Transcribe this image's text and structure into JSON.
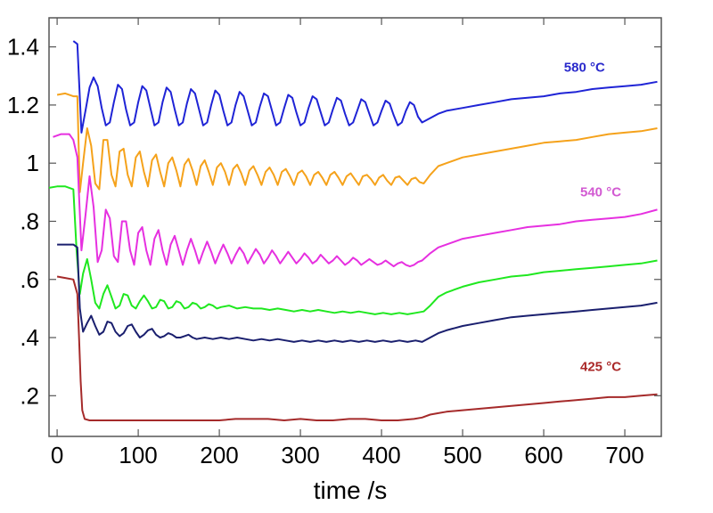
{
  "chart_data": {
    "type": "line",
    "title": "",
    "xlabel": "time /s",
    "ylabel": "",
    "xlim": [
      -10,
      745
    ],
    "ylim": [
      0.06,
      1.5
    ],
    "xticks": [
      0,
      100,
      200,
      300,
      400,
      500,
      600,
      700
    ],
    "xtick_labels": [
      "0",
      "100",
      "200",
      "300",
      "400",
      "500",
      "600",
      "700"
    ],
    "yticks": [
      0.2,
      0.4,
      0.6,
      0.8,
      1.0,
      1.2,
      1.4
    ],
    "ytick_labels": [
      ".2",
      ".4",
      ".6",
      ".8",
      "1",
      "1.2",
      "1.4"
    ],
    "grid": false,
    "annotations": [
      {
        "text": "580 °C",
        "x": 625,
        "y": 1.315,
        "color": "#2a2acc"
      },
      {
        "text": "540 °C",
        "x": 645,
        "y": 0.885,
        "color": "#d25ad2"
      },
      {
        "text": "425 °C",
        "x": 645,
        "y": 0.285,
        "color": "#aa2828"
      }
    ],
    "series": [
      {
        "color": "#1f24d6",
        "x": [
          20,
          25,
          30,
          35,
          40,
          45,
          50,
          55,
          60,
          65,
          70,
          75,
          80,
          85,
          90,
          95,
          100,
          105,
          110,
          115,
          120,
          125,
          130,
          135,
          140,
          145,
          150,
          155,
          160,
          165,
          170,
          175,
          180,
          185,
          190,
          195,
          200,
          205,
          210,
          215,
          220,
          225,
          230,
          235,
          240,
          245,
          250,
          255,
          260,
          265,
          270,
          275,
          280,
          285,
          290,
          295,
          300,
          305,
          310,
          315,
          320,
          325,
          330,
          335,
          340,
          345,
          350,
          355,
          360,
          365,
          370,
          375,
          380,
          385,
          390,
          395,
          400,
          405,
          410,
          415,
          420,
          425,
          430,
          435,
          440,
          445,
          450,
          460,
          470,
          480,
          500,
          520,
          540,
          560,
          580,
          600,
          620,
          640,
          660,
          680,
          700,
          720,
          740
        ],
        "y": [
          1.42,
          1.41,
          1.105,
          1.18,
          1.26,
          1.295,
          1.265,
          1.19,
          1.13,
          1.14,
          1.21,
          1.27,
          1.255,
          1.185,
          1.13,
          1.14,
          1.21,
          1.265,
          1.25,
          1.19,
          1.13,
          1.14,
          1.21,
          1.26,
          1.245,
          1.185,
          1.13,
          1.14,
          1.205,
          1.255,
          1.24,
          1.185,
          1.13,
          1.14,
          1.2,
          1.25,
          1.235,
          1.18,
          1.13,
          1.14,
          1.2,
          1.245,
          1.23,
          1.18,
          1.13,
          1.14,
          1.195,
          1.24,
          1.23,
          1.18,
          1.13,
          1.14,
          1.19,
          1.235,
          1.225,
          1.175,
          1.13,
          1.14,
          1.19,
          1.23,
          1.22,
          1.175,
          1.13,
          1.14,
          1.185,
          1.225,
          1.215,
          1.17,
          1.13,
          1.14,
          1.18,
          1.22,
          1.21,
          1.17,
          1.13,
          1.14,
          1.18,
          1.215,
          1.205,
          1.165,
          1.13,
          1.14,
          1.18,
          1.21,
          1.2,
          1.16,
          1.14,
          1.155,
          1.17,
          1.18,
          1.19,
          1.2,
          1.21,
          1.22,
          1.225,
          1.23,
          1.24,
          1.245,
          1.255,
          1.26,
          1.265,
          1.27,
          1.28
        ]
      },
      {
        "color": "#f5a21b",
        "x": [
          0,
          10,
          20,
          25,
          28,
          32,
          37,
          42,
          47,
          52,
          57,
          62,
          67,
          72,
          77,
          82,
          87,
          92,
          97,
          102,
          107,
          112,
          117,
          122,
          127,
          132,
          137,
          142,
          147,
          152,
          157,
          162,
          167,
          172,
          177,
          182,
          187,
          192,
          197,
          202,
          207,
          212,
          217,
          222,
          227,
          232,
          237,
          242,
          247,
          252,
          257,
          262,
          267,
          272,
          277,
          282,
          287,
          292,
          297,
          302,
          307,
          312,
          317,
          322,
          327,
          332,
          337,
          342,
          347,
          352,
          357,
          362,
          367,
          372,
          377,
          382,
          387,
          392,
          397,
          402,
          407,
          412,
          417,
          422,
          427,
          432,
          437,
          442,
          447,
          452,
          460,
          470,
          480,
          500,
          520,
          540,
          560,
          580,
          600,
          620,
          640,
          660,
          680,
          700,
          720,
          740
        ],
        "y": [
          1.235,
          1.24,
          1.23,
          1.23,
          0.9,
          1.0,
          1.12,
          1.06,
          0.93,
          0.91,
          1.08,
          1.08,
          0.96,
          0.92,
          1.04,
          1.05,
          0.96,
          0.92,
          1.02,
          1.04,
          0.97,
          0.92,
          1.01,
          1.03,
          0.97,
          0.92,
          1.0,
          1.02,
          0.975,
          0.92,
          0.995,
          1.015,
          0.975,
          0.925,
          0.99,
          1.01,
          0.97,
          0.925,
          0.985,
          1.0,
          0.97,
          0.925,
          0.98,
          0.995,
          0.965,
          0.925,
          0.975,
          0.99,
          0.96,
          0.925,
          0.97,
          0.985,
          0.96,
          0.925,
          0.97,
          0.98,
          0.955,
          0.925,
          0.965,
          0.975,
          0.955,
          0.925,
          0.96,
          0.97,
          0.95,
          0.925,
          0.96,
          0.97,
          0.95,
          0.925,
          0.955,
          0.965,
          0.945,
          0.925,
          0.955,
          0.96,
          0.945,
          0.925,
          0.95,
          0.96,
          0.94,
          0.925,
          0.95,
          0.955,
          0.94,
          0.925,
          0.945,
          0.95,
          0.935,
          0.93,
          0.96,
          0.99,
          1.0,
          1.02,
          1.03,
          1.04,
          1.05,
          1.06,
          1.07,
          1.075,
          1.08,
          1.09,
          1.1,
          1.105,
          1.11,
          1.12
        ]
      },
      {
        "color": "#e630e0",
        "x": [
          -5,
          5,
          15,
          20,
          25,
          30,
          35,
          40,
          45,
          50,
          55,
          60,
          65,
          70,
          75,
          80,
          85,
          90,
          95,
          100,
          105,
          110,
          115,
          120,
          125,
          130,
          135,
          140,
          145,
          150,
          155,
          160,
          165,
          170,
          175,
          180,
          185,
          190,
          195,
          200,
          205,
          210,
          215,
          220,
          225,
          230,
          235,
          240,
          245,
          250,
          255,
          260,
          265,
          270,
          275,
          280,
          285,
          290,
          295,
          300,
          305,
          310,
          315,
          320,
          325,
          330,
          335,
          340,
          345,
          350,
          355,
          360,
          365,
          370,
          375,
          380,
          385,
          390,
          395,
          400,
          405,
          410,
          415,
          420,
          425,
          430,
          435,
          440,
          445,
          450,
          460,
          470,
          480,
          500,
          520,
          540,
          560,
          580,
          600,
          620,
          640,
          660,
          680,
          700,
          720,
          740
        ],
        "y": [
          1.09,
          1.1,
          1.1,
          1.08,
          1.02,
          0.7,
          0.82,
          0.955,
          0.85,
          0.66,
          0.7,
          0.84,
          0.81,
          0.68,
          0.66,
          0.8,
          0.8,
          0.7,
          0.65,
          0.76,
          0.78,
          0.7,
          0.65,
          0.74,
          0.77,
          0.7,
          0.65,
          0.72,
          0.75,
          0.7,
          0.65,
          0.7,
          0.74,
          0.7,
          0.655,
          0.695,
          0.73,
          0.695,
          0.655,
          0.69,
          0.72,
          0.69,
          0.655,
          0.685,
          0.71,
          0.69,
          0.655,
          0.68,
          0.705,
          0.685,
          0.655,
          0.675,
          0.7,
          0.68,
          0.655,
          0.675,
          0.695,
          0.675,
          0.655,
          0.67,
          0.69,
          0.675,
          0.655,
          0.665,
          0.685,
          0.67,
          0.655,
          0.665,
          0.68,
          0.665,
          0.65,
          0.66,
          0.675,
          0.665,
          0.65,
          0.66,
          0.67,
          0.66,
          0.65,
          0.655,
          0.665,
          0.655,
          0.645,
          0.655,
          0.66,
          0.65,
          0.645,
          0.65,
          0.66,
          0.665,
          0.69,
          0.71,
          0.72,
          0.74,
          0.75,
          0.76,
          0.77,
          0.78,
          0.785,
          0.79,
          0.8,
          0.805,
          0.81,
          0.815,
          0.825,
          0.84
        ]
      },
      {
        "color": "#1fe81f",
        "x": [
          -10,
          0,
          10,
          20,
          24,
          28,
          32,
          37,
          42,
          47,
          52,
          57,
          62,
          67,
          72,
          77,
          82,
          87,
          92,
          97,
          102,
          107,
          112,
          117,
          122,
          127,
          132,
          137,
          142,
          147,
          152,
          157,
          162,
          167,
          172,
          177,
          182,
          187,
          192,
          197,
          202,
          212,
          222,
          232,
          242,
          252,
          262,
          272,
          282,
          292,
          302,
          312,
          322,
          332,
          342,
          352,
          362,
          372,
          382,
          392,
          402,
          412,
          422,
          432,
          442,
          452,
          460,
          470,
          480,
          500,
          520,
          540,
          560,
          580,
          600,
          620,
          640,
          660,
          680,
          700,
          720,
          740
        ],
        "y": [
          0.915,
          0.92,
          0.92,
          0.91,
          0.7,
          0.55,
          0.62,
          0.67,
          0.6,
          0.52,
          0.5,
          0.55,
          0.58,
          0.54,
          0.5,
          0.51,
          0.55,
          0.545,
          0.51,
          0.5,
          0.525,
          0.545,
          0.525,
          0.5,
          0.505,
          0.53,
          0.525,
          0.5,
          0.505,
          0.525,
          0.52,
          0.5,
          0.505,
          0.52,
          0.515,
          0.5,
          0.505,
          0.515,
          0.51,
          0.5,
          0.505,
          0.51,
          0.5,
          0.505,
          0.5,
          0.5,
          0.495,
          0.5,
          0.495,
          0.49,
          0.495,
          0.49,
          0.495,
          0.49,
          0.485,
          0.49,
          0.485,
          0.49,
          0.485,
          0.48,
          0.485,
          0.48,
          0.485,
          0.48,
          0.485,
          0.49,
          0.51,
          0.54,
          0.555,
          0.575,
          0.59,
          0.6,
          0.61,
          0.615,
          0.625,
          0.63,
          0.635,
          0.64,
          0.645,
          0.65,
          0.655,
          0.665
        ]
      },
      {
        "color": "#1a1f6e",
        "x": [
          0,
          10,
          20,
          25,
          28,
          32,
          37,
          42,
          47,
          52,
          57,
          62,
          67,
          72,
          77,
          82,
          87,
          92,
          97,
          102,
          107,
          112,
          117,
          122,
          127,
          132,
          137,
          142,
          147,
          152,
          157,
          162,
          167,
          172,
          182,
          192,
          202,
          212,
          222,
          232,
          242,
          252,
          262,
          272,
          282,
          292,
          302,
          312,
          322,
          332,
          342,
          352,
          362,
          372,
          382,
          392,
          402,
          412,
          422,
          432,
          442,
          450,
          460,
          470,
          480,
          500,
          520,
          540,
          560,
          580,
          600,
          620,
          640,
          660,
          680,
          700,
          720,
          740
        ],
        "y": [
          0.72,
          0.72,
          0.72,
          0.71,
          0.5,
          0.42,
          0.45,
          0.475,
          0.44,
          0.41,
          0.42,
          0.455,
          0.45,
          0.42,
          0.405,
          0.415,
          0.44,
          0.445,
          0.42,
          0.4,
          0.41,
          0.425,
          0.43,
          0.41,
          0.4,
          0.405,
          0.415,
          0.41,
          0.4,
          0.4,
          0.405,
          0.41,
          0.4,
          0.395,
          0.4,
          0.395,
          0.4,
          0.395,
          0.4,
          0.395,
          0.39,
          0.395,
          0.39,
          0.395,
          0.39,
          0.385,
          0.39,
          0.385,
          0.39,
          0.385,
          0.39,
          0.385,
          0.39,
          0.385,
          0.39,
          0.385,
          0.39,
          0.385,
          0.39,
          0.385,
          0.39,
          0.385,
          0.4,
          0.415,
          0.425,
          0.44,
          0.45,
          0.46,
          0.47,
          0.475,
          0.48,
          0.485,
          0.49,
          0.495,
          0.5,
          0.505,
          0.51,
          0.52
        ]
      },
      {
        "color": "#a52a2a",
        "x": [
          0,
          10,
          20,
          25,
          27,
          29,
          31,
          34,
          40,
          60,
          80,
          100,
          120,
          140,
          160,
          180,
          200,
          220,
          240,
          260,
          280,
          300,
          320,
          340,
          360,
          380,
          400,
          420,
          440,
          450,
          460,
          470,
          480,
          500,
          520,
          540,
          560,
          580,
          600,
          620,
          640,
          660,
          680,
          700,
          720,
          740
        ],
        "y": [
          0.61,
          0.605,
          0.6,
          0.55,
          0.4,
          0.25,
          0.15,
          0.12,
          0.115,
          0.115,
          0.115,
          0.115,
          0.115,
          0.115,
          0.115,
          0.115,
          0.115,
          0.12,
          0.12,
          0.12,
          0.115,
          0.12,
          0.115,
          0.115,
          0.12,
          0.12,
          0.115,
          0.115,
          0.12,
          0.125,
          0.135,
          0.14,
          0.145,
          0.15,
          0.155,
          0.16,
          0.165,
          0.17,
          0.175,
          0.18,
          0.185,
          0.19,
          0.195,
          0.195,
          0.2,
          0.205
        ]
      }
    ]
  }
}
